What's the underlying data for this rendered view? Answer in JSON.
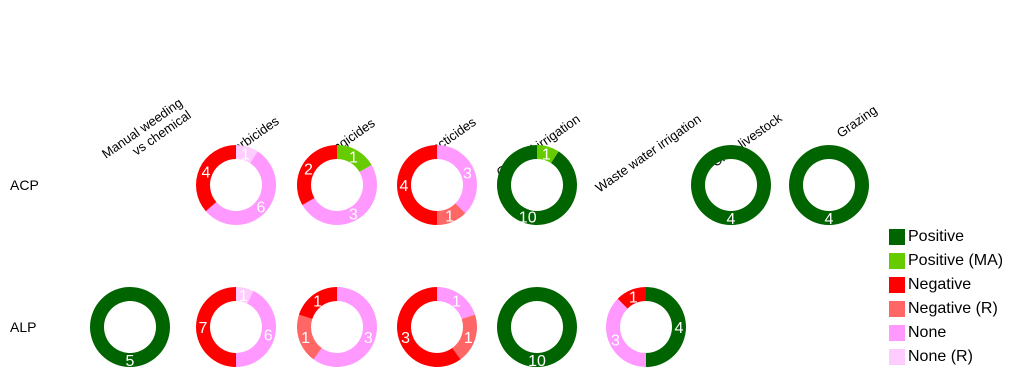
{
  "chart_data": {
    "type": "donut-grid",
    "columns": [
      "Manual weeding\nvs chemical",
      "Herbicides",
      "Fungicides",
      "Insecticides",
      "Optimal irrigation",
      "Waste water irrigation",
      "Crop-livestock",
      "Grazing"
    ],
    "rows": [
      "ACP",
      "ALP"
    ],
    "legend": [
      {
        "key": "positive",
        "label": "Positive",
        "color": "#006400"
      },
      {
        "key": "positive_ma",
        "label": "Positive (MA)",
        "color": "#66CC00"
      },
      {
        "key": "negative",
        "label": "Negative",
        "color": "#FF0000"
      },
      {
        "key": "negative_r",
        "label": "Negative (R)",
        "color": "#FF6666"
      },
      {
        "key": "none",
        "label": "None",
        "color": "#FF99FF"
      },
      {
        "key": "none_r",
        "label": "None (R)",
        "color": "#FFCCFF"
      }
    ],
    "cells": [
      {
        "row": "ACP",
        "column": "Herbicides",
        "segments": [
          {
            "category": "none_r",
            "value": 1
          },
          {
            "category": "none",
            "value": 6
          },
          {
            "category": "negative",
            "value": 4
          }
        ]
      },
      {
        "row": "ACP",
        "column": "Fungicides",
        "segments": [
          {
            "category": "positive_ma",
            "value": 1
          },
          {
            "category": "none",
            "value": 3
          },
          {
            "category": "negative",
            "value": 2
          }
        ]
      },
      {
        "row": "ACP",
        "column": "Insecticides",
        "segments": [
          {
            "category": "none",
            "value": 3
          },
          {
            "category": "negative_r",
            "value": 1
          },
          {
            "category": "negative",
            "value": 4
          }
        ]
      },
      {
        "row": "ACP",
        "column": "Optimal irrigation",
        "segments": [
          {
            "category": "positive_ma",
            "value": 1
          },
          {
            "category": "positive",
            "value": 10
          }
        ]
      },
      {
        "row": "ACP",
        "column": "Crop-livestock",
        "segments": [
          {
            "category": "positive",
            "value": 4
          }
        ]
      },
      {
        "row": "ACP",
        "column": "Grazing",
        "segments": [
          {
            "category": "positive",
            "value": 4
          }
        ]
      },
      {
        "row": "ALP",
        "column": "Manual weeding\nvs chemical",
        "segments": [
          {
            "category": "positive",
            "value": 5
          }
        ]
      },
      {
        "row": "ALP",
        "column": "Herbicides",
        "segments": [
          {
            "category": "none_r",
            "value": 1
          },
          {
            "category": "none",
            "value": 6
          },
          {
            "category": "negative",
            "value": 7
          }
        ]
      },
      {
        "row": "ALP",
        "column": "Fungicides",
        "segments": [
          {
            "category": "none",
            "value": 3
          },
          {
            "category": "negative_r",
            "value": 1
          },
          {
            "category": "negative",
            "value": 1
          }
        ]
      },
      {
        "row": "ALP",
        "column": "Insecticides",
        "segments": [
          {
            "category": "none",
            "value": 1
          },
          {
            "category": "negative_r",
            "value": 1
          },
          {
            "category": "negative",
            "value": 3
          }
        ]
      },
      {
        "row": "ALP",
        "column": "Optimal irrigation",
        "segments": [
          {
            "category": "positive",
            "value": 10
          }
        ]
      },
      {
        "row": "ALP",
        "column": "Waste water irrigation",
        "segments": [
          {
            "category": "positive",
            "value": 4
          },
          {
            "category": "none",
            "value": 3
          },
          {
            "category": "negative",
            "value": 1
          }
        ]
      }
    ]
  }
}
